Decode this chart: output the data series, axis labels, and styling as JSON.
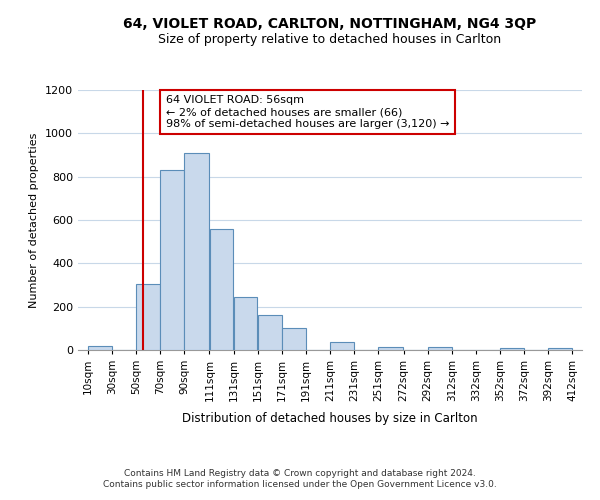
{
  "title": "64, VIOLET ROAD, CARLTON, NOTTINGHAM, NG4 3QP",
  "subtitle": "Size of property relative to detached houses in Carlton",
  "xlabel": "Distribution of detached houses by size in Carlton",
  "ylabel": "Number of detached properties",
  "bar_color": "#c9d9ec",
  "bar_edge_color": "#5b8db8",
  "bin_labels": [
    "10sqm",
    "30sqm",
    "50sqm",
    "70sqm",
    "90sqm",
    "111sqm",
    "131sqm",
    "151sqm",
    "171sqm",
    "191sqm",
    "211sqm",
    "231sqm",
    "251sqm",
    "272sqm",
    "292sqm",
    "312sqm",
    "332sqm",
    "352sqm",
    "372sqm",
    "392sqm",
    "412sqm"
  ],
  "bar_values": [
    20,
    0,
    305,
    830,
    910,
    560,
    243,
    162,
    102,
    0,
    35,
    0,
    15,
    0,
    15,
    0,
    0,
    8,
    0,
    8
  ],
  "bin_edges": [
    10,
    30,
    50,
    70,
    90,
    111,
    131,
    151,
    171,
    191,
    211,
    231,
    251,
    272,
    292,
    312,
    332,
    352,
    372,
    392,
    412
  ],
  "ylim": [
    0,
    1200
  ],
  "yticks": [
    0,
    200,
    400,
    600,
    800,
    1000,
    1200
  ],
  "vline_x": 56,
  "vline_color": "#cc0000",
  "annotation_line1": "64 VIOLET ROAD: 56sqm",
  "annotation_line2": "← 2% of detached houses are smaller (66)",
  "annotation_line3": "98% of semi-detached houses are larger (3,120) →",
  "annotation_box_color": "#ffffff",
  "annotation_box_edge": "#cc0000",
  "footer1": "Contains HM Land Registry data © Crown copyright and database right 2024.",
  "footer2": "Contains public sector information licensed under the Open Government Licence v3.0.",
  "background_color": "#ffffff",
  "grid_color": "#c8d8e8"
}
